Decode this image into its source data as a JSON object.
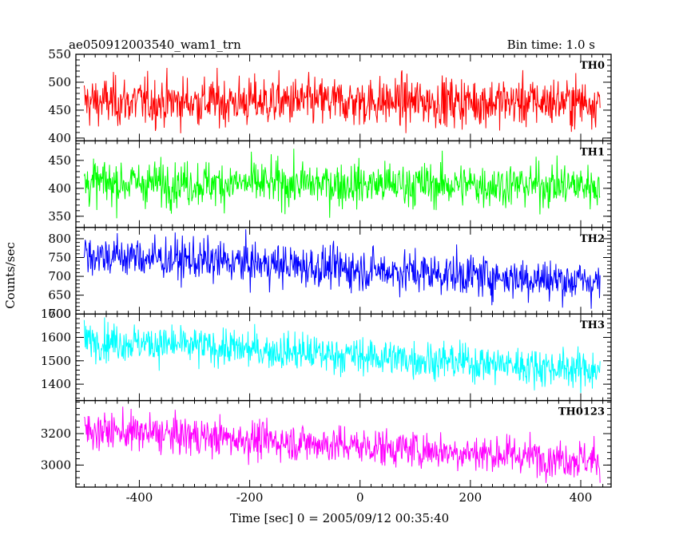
{
  "chart_data": {
    "type": "line",
    "title": "ae050912003540_wam1_trn",
    "subtitle": "Bin time: 1.0 s",
    "xlabel": "Time [sec] 0 = 2005/09/12 00:35:40",
    "ylabel": "Counts/sec",
    "xlim": [
      -515,
      455
    ],
    "x_ticks": [
      -400,
      -200,
      0,
      200,
      400
    ],
    "x_start": -500,
    "x_end": 435,
    "bin_seconds": 1.0,
    "grid": false,
    "panels": [
      {
        "name": "TH0",
        "color": "#ff0000",
        "ylim": [
          395,
          550
        ],
        "y_ticks": [
          400,
          450,
          500,
          550
        ],
        "mean_start": 465,
        "mean_end": 465,
        "noise_sd": 22
      },
      {
        "name": "TH1",
        "color": "#00ff00",
        "ylim": [
          330,
          485
        ],
        "y_ticks": [
          350,
          400,
          450
        ],
        "mean_start": 410,
        "mean_end": 405,
        "noise_sd": 20
      },
      {
        "name": "TH2",
        "color": "#0000ff",
        "ylim": [
          600,
          830
        ],
        "y_ticks": [
          600,
          650,
          700,
          750,
          800
        ],
        "mean_start": 758,
        "mean_end": 685,
        "noise_sd": 28
      },
      {
        "name": "TH3",
        "color": "#00ffff",
        "ylim": [
          1330,
          1700
        ],
        "y_ticks": [
          1400,
          1500,
          1600,
          1700
        ],
        "mean_start": 1590,
        "mean_end": 1460,
        "noise_sd": 40
      },
      {
        "name": "TH0123",
        "color": "#ff00ff",
        "ylim": [
          2860,
          3410
        ],
        "y_ticks": [
          3000,
          3200
        ],
        "mean_start": 3225,
        "mean_end": 3030,
        "noise_sd": 60
      }
    ]
  }
}
